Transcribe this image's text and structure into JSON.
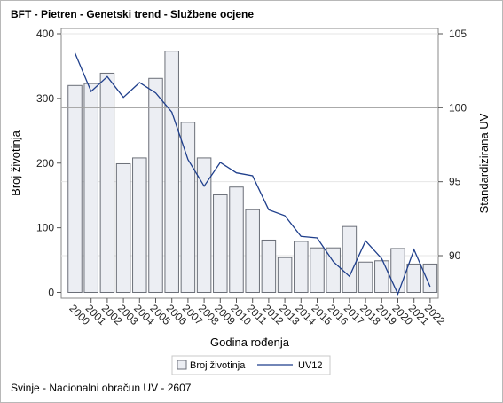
{
  "title": "BFT - Pietren - Genetski trend - Službene ocjene",
  "footnote": "Svinje - Nacionalni obračun UV - 2607",
  "colors": {
    "bar_fill": "#eceef3",
    "bar_stroke": "#6b6f78",
    "line": "#1f3f8c",
    "refline": "#a0a0a0",
    "grid": "#e6e6e6"
  },
  "chart_data": {
    "type": "bar",
    "categories": [
      "2000",
      "2001",
      "2002",
      "2003",
      "2004",
      "2005",
      "2006",
      "2007",
      "2008",
      "2009",
      "2010",
      "2011",
      "2012",
      "2013",
      "2014",
      "2015",
      "2016",
      "2017",
      "2018",
      "2019",
      "2020",
      "2021",
      "2022"
    ],
    "xlabel": "Godina rođenja",
    "ylabel": "Broj životinja",
    "y2label": "Standardizirana UV",
    "ylim": [
      0,
      400
    ],
    "y2lim": [
      87.5,
      105
    ],
    "yticks": [
      "0",
      "100",
      "200",
      "300",
      "400"
    ],
    "y2ticks": [
      "90",
      "95",
      "100",
      "105"
    ],
    "reference_line_y2": 100,
    "grid": "horizontal",
    "legend_position": "bottom",
    "series": [
      {
        "name": "Broj životinja",
        "type": "bar",
        "values": [
          320,
          323,
          339,
          199,
          208,
          331,
          373,
          263,
          208,
          151,
          163,
          128,
          81,
          54,
          79,
          69,
          69,
          102,
          47,
          49,
          68,
          44,
          44
        ]
      },
      {
        "name": "UV12",
        "type": "line",
        "axis": "y2",
        "values": [
          103.7,
          101.1,
          102.1,
          100.7,
          101.7,
          101.0,
          99.7,
          96.5,
          94.7,
          96.3,
          95.6,
          95.4,
          93.1,
          92.7,
          91.3,
          91.2,
          89.6,
          88.6,
          91.0,
          89.8,
          87.4,
          90.4,
          87.9
        ]
      }
    ]
  }
}
